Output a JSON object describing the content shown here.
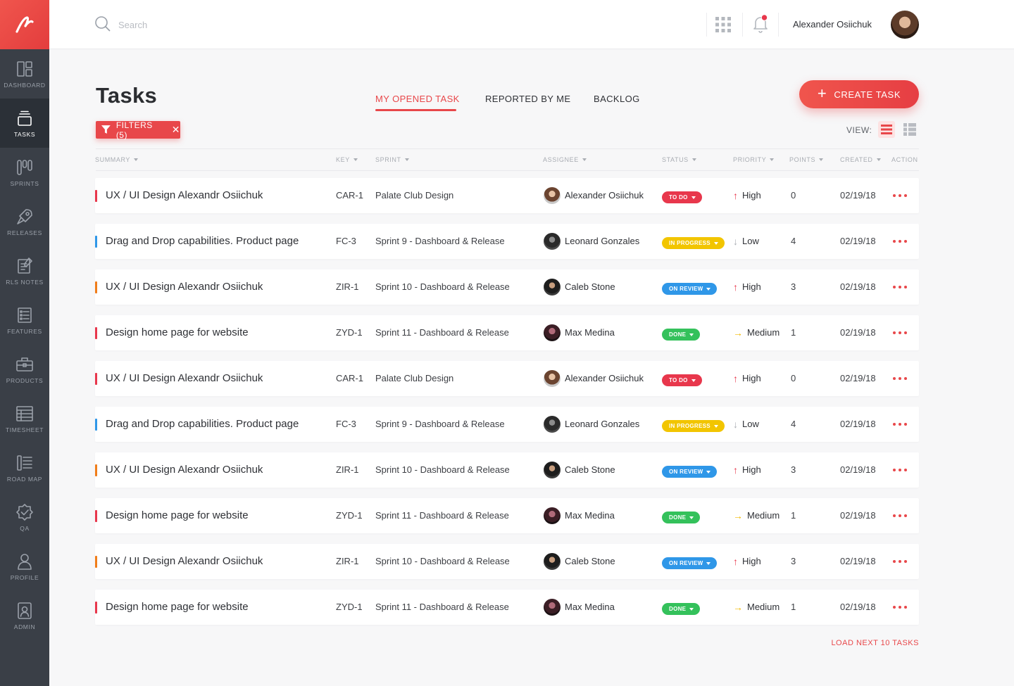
{
  "colors": {
    "accent": "#e8474a",
    "sidebar": "#3a3f47",
    "status_todo": "#e8374c",
    "status_in_progress": "#f2c500",
    "status_on_review": "#2f97e8",
    "status_done": "#34c15b",
    "priority_high": "#e8374c",
    "priority_low": "#a9adb3",
    "priority_medium": "#f2b900"
  },
  "sidebar": {
    "logo_icon": "brand-logo-icon",
    "items": [
      {
        "label": "DASHBOARD",
        "icon": "dashboard-icon",
        "active": false
      },
      {
        "label": "TASKS",
        "icon": "tasks-icon",
        "active": true
      },
      {
        "label": "SPRINTS",
        "icon": "sprints-icon",
        "active": false
      },
      {
        "label": "RELEASES",
        "icon": "rocket-icon",
        "active": false
      },
      {
        "label": "RLS NOTES",
        "icon": "notes-icon",
        "active": false
      },
      {
        "label": "FEATURES",
        "icon": "features-icon",
        "active": false
      },
      {
        "label": "PRODUCTS",
        "icon": "briefcase-icon",
        "active": false
      },
      {
        "label": "TIMESHEET",
        "icon": "timesheet-icon",
        "active": false
      },
      {
        "label": "ROAD MAP",
        "icon": "roadmap-icon",
        "active": false
      },
      {
        "label": "QA",
        "icon": "badge-check-icon",
        "active": false
      },
      {
        "label": "PROFILE",
        "icon": "user-icon",
        "active": false
      },
      {
        "label": "ADMIN",
        "icon": "admin-icon",
        "active": false
      }
    ]
  },
  "header": {
    "search_placeholder": "Search",
    "user_name": "Alexander Osiichuk",
    "notification_dot": true
  },
  "main": {
    "title": "Tasks",
    "tabs": [
      {
        "label": "MY OPENED TASK",
        "active": true
      },
      {
        "label": "REPORTED BY ME",
        "active": false
      },
      {
        "label": "BACKLOG",
        "active": false
      }
    ],
    "create_label": "CREATE TASK",
    "filter_label": "FILTERS (5)",
    "view_label": "VIEW:",
    "load_next_label": "LOAD NEXT 10 TASKS"
  },
  "table": {
    "columns": [
      "SUMMARY",
      "KEY",
      "SPRINT",
      "ASSIGNEE",
      "STATUS",
      "PRIORITY",
      "POINTS",
      "CREATED",
      "ACTION"
    ],
    "rows": [
      {
        "summary": "UX / UI Design Alexandr Osiichuk",
        "key": "CAR-1",
        "sprint": "Palate Club Design",
        "assignee": "Alexander Osiichuk",
        "status": "TO DO",
        "priority": "High",
        "points": "0",
        "created": "02/19/18",
        "strip": "#e8374c"
      },
      {
        "summary": "Drag and Drop capabilities. Product page",
        "key": "FC-3",
        "sprint": "Sprint 9 - Dashboard & Release",
        "assignee": "Leonard Gonzales",
        "status": "IN PROGRESS",
        "priority": "Low",
        "points": "4",
        "created": "02/19/18",
        "strip": "#2f97e8"
      },
      {
        "summary": "UX / UI Design Alexandr Osiichuk",
        "key": "ZIR-1",
        "sprint": "Sprint 10 - Dashboard & Release",
        "assignee": "Caleb Stone",
        "status": "ON REVIEW",
        "priority": "High",
        "points": "3",
        "created": "02/19/18",
        "strip": "#f07d1a"
      },
      {
        "summary": "Design home page for website",
        "key": "ZYD-1",
        "sprint": "Sprint 11 - Dashboard & Release",
        "assignee": "Max Medina",
        "status": "DONE",
        "priority": "Medium",
        "points": "1",
        "created": "02/19/18",
        "strip": "#e8374c"
      },
      {
        "summary": "UX / UI Design Alexandr Osiichuk",
        "key": "CAR-1",
        "sprint": "Palate Club Design",
        "assignee": "Alexander Osiichuk",
        "status": "TO DO",
        "priority": "High",
        "points": "0",
        "created": "02/19/18",
        "strip": "#e8374c"
      },
      {
        "summary": "Drag and Drop capabilities. Product page",
        "key": "FC-3",
        "sprint": "Sprint 9 - Dashboard & Release",
        "assignee": "Leonard Gonzales",
        "status": "IN PROGRESS",
        "priority": "Low",
        "points": "4",
        "created": "02/19/18",
        "strip": "#2f97e8"
      },
      {
        "summary": "UX / UI Design Alexandr Osiichuk",
        "key": "ZIR-1",
        "sprint": "Sprint 10 - Dashboard & Release",
        "assignee": "Caleb Stone",
        "status": "ON REVIEW",
        "priority": "High",
        "points": "3",
        "created": "02/19/18",
        "strip": "#f07d1a"
      },
      {
        "summary": "Design home page for website",
        "key": "ZYD-1",
        "sprint": "Sprint 11 - Dashboard & Release",
        "assignee": "Max Medina",
        "status": "DONE",
        "priority": "Medium",
        "points": "1",
        "created": "02/19/18",
        "strip": "#e8374c"
      },
      {
        "summary": "UX / UI Design Alexandr Osiichuk",
        "key": "ZIR-1",
        "sprint": "Sprint 10 - Dashboard & Release",
        "assignee": "Caleb Stone",
        "status": "ON REVIEW",
        "priority": "High",
        "points": "3",
        "created": "02/19/18",
        "strip": "#f07d1a"
      },
      {
        "summary": "Design home page for website",
        "key": "ZYD-1",
        "sprint": "Sprint 11 - Dashboard & Release",
        "assignee": "Max Medina",
        "status": "DONE",
        "priority": "Medium",
        "points": "1",
        "created": "02/19/18",
        "strip": "#e8374c"
      }
    ]
  }
}
